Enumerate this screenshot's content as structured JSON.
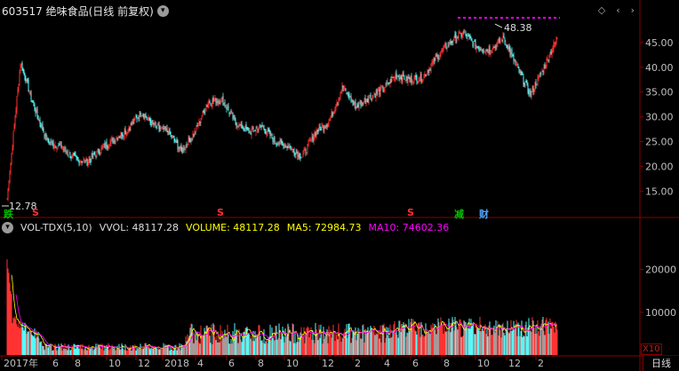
{
  "header": {
    "title": "603517 绝味食品(日线 前复权)",
    "menu_icon": "chevron-down-icon",
    "icons": [
      "diamond-icon",
      "chevron-left-icon",
      "chevron-right-icon"
    ]
  },
  "price_panel": {
    "y_ticks": [
      "45.00",
      "40.00",
      "35.00",
      "30.00",
      "25.00",
      "20.00",
      "15.00"
    ],
    "high_label": "48.38",
    "low_label": "12.78",
    "markers": [
      {
        "text": "跌",
        "color": "#00c000"
      },
      {
        "text": "S",
        "color": "#ff3030"
      },
      {
        "text": "S",
        "color": "#ff3030"
      },
      {
        "text": "S",
        "color": "#ff3030"
      },
      {
        "text": "减",
        "color": "#00c000"
      },
      {
        "text": "财",
        "color": "#4aa8ff"
      }
    ]
  },
  "volume_panel": {
    "indicator": "VOL-TDX(5,10)",
    "vvol": "VVOL: 48117.28",
    "volume": "VOLUME: 48117.28",
    "ma5": "MA5: 72984.73",
    "ma10": "MA10: 74602.36",
    "y_ticks": [
      "20000",
      "10000"
    ],
    "unit": "X10"
  },
  "x_axis": {
    "labels": [
      "2017年",
      "6",
      "8",
      "10",
      "12",
      "2018",
      "4",
      "6",
      "8",
      "10",
      "12",
      "2",
      "4",
      "6",
      "8",
      "10",
      "12",
      "2"
    ]
  },
  "period_button": "日线",
  "colors": {
    "up": "#ff3232",
    "down": "#54fcfc",
    "axis": "#8b0000",
    "vvol": "#ffffff",
    "ma5": "#ffff00",
    "ma10": "#ff00ff"
  },
  "chart_data": {
    "type": "candlestick",
    "title": "603517 绝味食品(日线 前复权)",
    "xlabel": "",
    "ylabel": "",
    "ylim": [
      12,
      50
    ],
    "price_path": [
      {
        "x": "2017-03",
        "y": 13.5
      },
      {
        "x": "2017-03",
        "y": 41.0
      },
      {
        "x": "2017-04",
        "y": 32.0
      },
      {
        "x": "2017-05",
        "y": 25.0
      },
      {
        "x": "2017-06",
        "y": 24.0
      },
      {
        "x": "2017-07",
        "y": 21.5
      },
      {
        "x": "2017-08",
        "y": 21.0
      },
      {
        "x": "2017-09",
        "y": 23.5
      },
      {
        "x": "2017-10",
        "y": 25.5
      },
      {
        "x": "2017-11",
        "y": 27.5
      },
      {
        "x": "2017-12",
        "y": 31.0
      },
      {
        "x": "2018-01",
        "y": 28.0
      },
      {
        "x": "2018-02",
        "y": 27.0
      },
      {
        "x": "2018-03",
        "y": 23.0
      },
      {
        "x": "2018-04",
        "y": 27.0
      },
      {
        "x": "2018-05",
        "y": 33.0
      },
      {
        "x": "2018-06",
        "y": 33.5
      },
      {
        "x": "2018-07",
        "y": 29.0
      },
      {
        "x": "2018-08",
        "y": 27.0
      },
      {
        "x": "2018-09",
        "y": 28.0
      },
      {
        "x": "2018-10",
        "y": 25.0
      },
      {
        "x": "2018-11",
        "y": 24.0
      },
      {
        "x": "2018-12",
        "y": 22.0
      },
      {
        "x": "2019-01",
        "y": 27.0
      },
      {
        "x": "2019-02",
        "y": 29.0
      },
      {
        "x": "2019-03",
        "y": 36.0
      },
      {
        "x": "2019-04",
        "y": 32.0
      },
      {
        "x": "2019-05",
        "y": 34.0
      },
      {
        "x": "2019-06",
        "y": 35.5
      },
      {
        "x": "2019-07",
        "y": 38.5
      },
      {
        "x": "2019-08",
        "y": 37.5
      },
      {
        "x": "2019-09",
        "y": 38.0
      },
      {
        "x": "2019-10",
        "y": 42.0
      },
      {
        "x": "2019-11",
        "y": 45.0
      },
      {
        "x": "2019-12",
        "y": 47.0
      },
      {
        "x": "2020-01",
        "y": 44.0
      },
      {
        "x": "2020-02",
        "y": 43.5
      },
      {
        "x": "2020-03",
        "y": 46.0
      },
      {
        "x": "2020-04",
        "y": 40.0
      },
      {
        "x": "2020-04",
        "y": 34.5
      },
      {
        "x": "2020-05",
        "y": 40.0
      },
      {
        "x": "2020-06",
        "y": 46.0
      }
    ],
    "high": 48.38,
    "low": 12.78,
    "volume": {
      "ylim": [
        0,
        28000
      ],
      "latest": 48117.28,
      "ma5": 72984.73,
      "ma10": 74602.36
    }
  }
}
